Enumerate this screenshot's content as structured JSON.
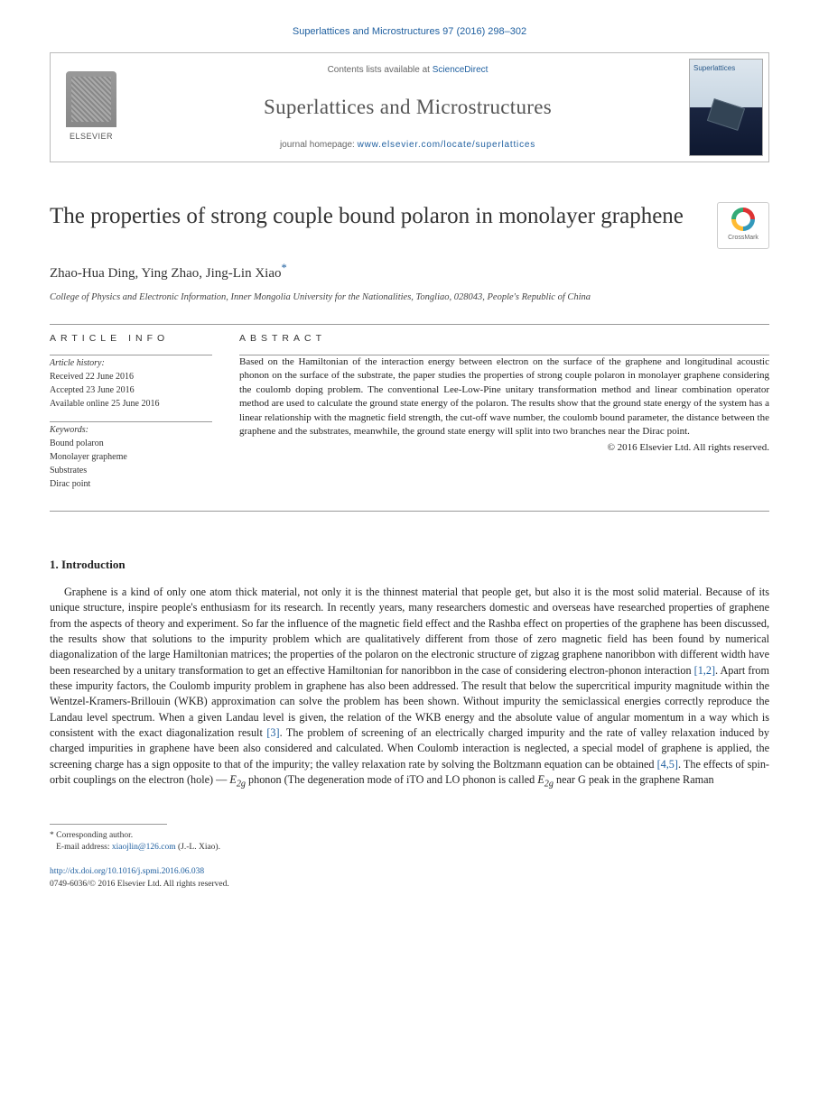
{
  "citation": "Superlattices and Microstructures 97 (2016) 298–302",
  "header": {
    "contents_prefix": "Contents lists available at ",
    "contents_link": "ScienceDirect",
    "journal_name": "Superlattices and Microstructures",
    "homepage_prefix": "journal homepage: ",
    "homepage_url": "www.elsevier.com/locate/superlattices",
    "publisher_label": "ELSEVIER",
    "cover_title": "Superlattices"
  },
  "article": {
    "title": "The properties of strong couple bound polaron in monolayer graphene",
    "crossmark_label": "CrossMark",
    "authors_plain": "Zhao-Hua Ding, Ying Zhao, Jing-Lin Xiao",
    "corr_marker": "*",
    "affiliation": "College of Physics and Electronic Information, Inner Mongolia University for the Nationalities, Tongliao, 028043, People's Republic of China"
  },
  "info": {
    "heading": "ARTICLE INFO",
    "history_label": "Article history:",
    "history": {
      "received": "Received 22 June 2016",
      "accepted": "Accepted 23 June 2016",
      "online": "Available online 25 June 2016"
    },
    "keywords_label": "Keywords:",
    "keywords": [
      "Bound polaron",
      "Monolayer grapheme",
      "Substrates",
      "Dirac point"
    ]
  },
  "abstract": {
    "heading": "ABSTRACT",
    "text": "Based on the Hamiltonian of the interaction energy between electron on the surface of the graphene and longitudinal acoustic phonon on the surface of the substrate, the paper studies the properties of strong couple polaron in monolayer graphene considering the coulomb doping problem. The conventional Lee-Low-Pine unitary transformation method and linear combination operator method are used to calculate the ground state energy of the polaron. The results show that the ground state energy of the system has a linear relationship with the magnetic field strength, the cut-off wave number, the coulomb bound parameter, the distance between the graphene and the substrates, meanwhile, the ground state energy will split into two branches near the Dirac point.",
    "copyright": "© 2016 Elsevier Ltd. All rights reserved."
  },
  "sections": {
    "intro_heading": "1. Introduction",
    "intro_body_pre": "Graphene is a kind of only one atom thick material, not only it is the thinnest material that people get, but also it is the most solid material. Because of its unique structure, inspire people's enthusiasm for its research. In recently years, many researchers domestic and overseas have researched properties of graphene from the aspects of theory and experiment. So far the influence of the magnetic field effect and the Rashba effect on properties of the graphene has been discussed, the results show that solutions to the impurity problem which are qualitatively different from those of zero magnetic field has been found by numerical diagonalization of the large Hamiltonian matrices; the properties of the polaron on the electronic structure of zigzag graphene nanoribbon with different width have been researched by a unitary transformation to get an effective Hamiltonian for nanoribbon in the case of considering electron-phonon interaction ",
    "ref12": "[1,2]",
    "intro_body_mid1": ". Apart from these impurity factors, the Coulomb impurity problem in graphene has also been addressed. The result that below the supercritical impurity magnitude within the Wentzel-Kramers-Brillouin (WKB) approximation can solve the problem has been shown. Without impurity the semiclassical energies correctly reproduce the Landau level spectrum. When a given Landau level is given, the relation of the WKB energy and the absolute value of angular momentum in a way which is consistent with the exact diagonalization result ",
    "ref3": "[3]",
    "intro_body_mid2": ". The problem of screening of an electrically charged impurity and the rate of valley relaxation induced by charged impurities in graphene have been also considered and calculated. When Coulomb interaction is neglected, a special model of graphene is applied, the screening charge has a sign opposite to that of the impurity; the valley relaxation rate by solving the Boltzmann equation can be obtained ",
    "ref45": "[4,5]",
    "intro_body_post": ". The effects of spin-orbit couplings on the electron (hole) — ",
    "e2g_1": "E",
    "e2g_sub": "2g",
    "intro_body_post2": " phonon (The degeneration mode of iTO and LO phonon is called ",
    "intro_body_post3": " near G peak in the graphene Raman"
  },
  "footer": {
    "corr_label": "* Corresponding author.",
    "email_label": "E-mail address: ",
    "email": "xiaojlin@126.com",
    "email_suffix": " (J.-L. Xiao).",
    "doi": "http://dx.doi.org/10.1016/j.spmi.2016.06.038",
    "issn_line": "0749-6036/© 2016 Elsevier Ltd. All rights reserved."
  },
  "colors": {
    "link": "#2060a0",
    "text": "#222222",
    "rule": "#999999"
  }
}
